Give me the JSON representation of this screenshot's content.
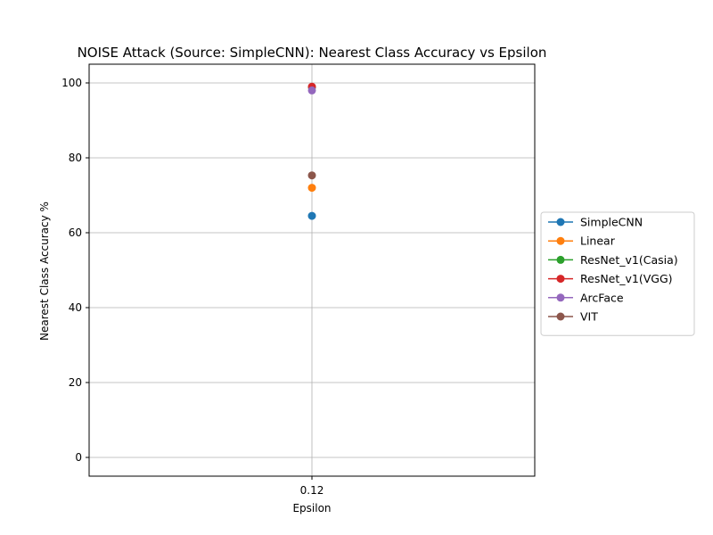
{
  "chart_data": {
    "type": "line",
    "title": "NOISE Attack (Source: SimpleCNN): Nearest Class Accuracy vs Epsilon",
    "xlabel": "Epsilon",
    "ylabel": "Nearest Class Accuracy %",
    "x": [
      "0.12"
    ],
    "ylim": [
      -5,
      105
    ],
    "yticks": [
      0,
      20,
      40,
      60,
      80,
      100
    ],
    "grid": true,
    "legend_position": "center-right outside",
    "series": [
      {
        "name": "SimpleCNN",
        "values": [
          64.5
        ],
        "color": "#1f77b4"
      },
      {
        "name": "Linear",
        "values": [
          72.0
        ],
        "color": "#ff7f0e"
      },
      {
        "name": "ResNet_v1(Casia)",
        "values": [
          98.8
        ],
        "color": "#2ca02c"
      },
      {
        "name": "ResNet_v1(VGG)",
        "values": [
          99.0
        ],
        "color": "#d62728"
      },
      {
        "name": "ArcFace",
        "values": [
          98.0
        ],
        "color": "#9467bd"
      },
      {
        "name": "VIT",
        "values": [
          75.3
        ],
        "color": "#8c564b"
      }
    ]
  }
}
